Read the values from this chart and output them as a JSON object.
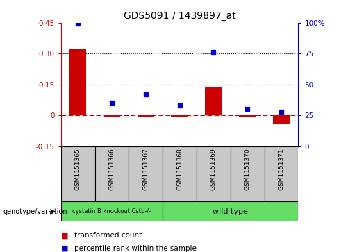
{
  "title": "GDS5091 / 1439897_at",
  "samples": [
    "GSM1151365",
    "GSM1151366",
    "GSM1151367",
    "GSM1151368",
    "GSM1151369",
    "GSM1151370",
    "GSM1151371"
  ],
  "red_values": [
    0.325,
    -0.01,
    -0.005,
    -0.01,
    0.14,
    -0.008,
    -0.04
  ],
  "blue_values": [
    99.0,
    35.0,
    42.0,
    33.0,
    76.0,
    30.0,
    28.0
  ],
  "left_ylim": [
    -0.15,
    0.45
  ],
  "right_ylim": [
    0,
    100
  ],
  "left_yticks": [
    -0.15,
    0.0,
    0.15,
    0.3,
    0.45
  ],
  "right_yticks": [
    0,
    25,
    50,
    75,
    100
  ],
  "left_yticklabels": [
    "-0.15",
    "0",
    "0.15",
    "0.30",
    "0.45"
  ],
  "right_yticklabels": [
    "0",
    "25",
    "50",
    "75",
    "100%"
  ],
  "hlines": [
    0.15,
    0.3
  ],
  "red_color": "#cc0000",
  "blue_color": "#0000cc",
  "bar_width": 0.5,
  "cystatin_label": "cystatin B knockout Cstb-/-",
  "wildtype_label": "wild type",
  "genotype_label": "genotype/variation",
  "legend_red": "transformed count",
  "legend_blue": "percentile rank within the sample",
  "gray_color": "#c8c8c8",
  "green_color": "#66dd66",
  "white": "#ffffff",
  "title_fontsize": 10,
  "tick_fontsize": 7.5,
  "sample_fontsize": 6.5,
  "legend_fontsize": 7.5
}
